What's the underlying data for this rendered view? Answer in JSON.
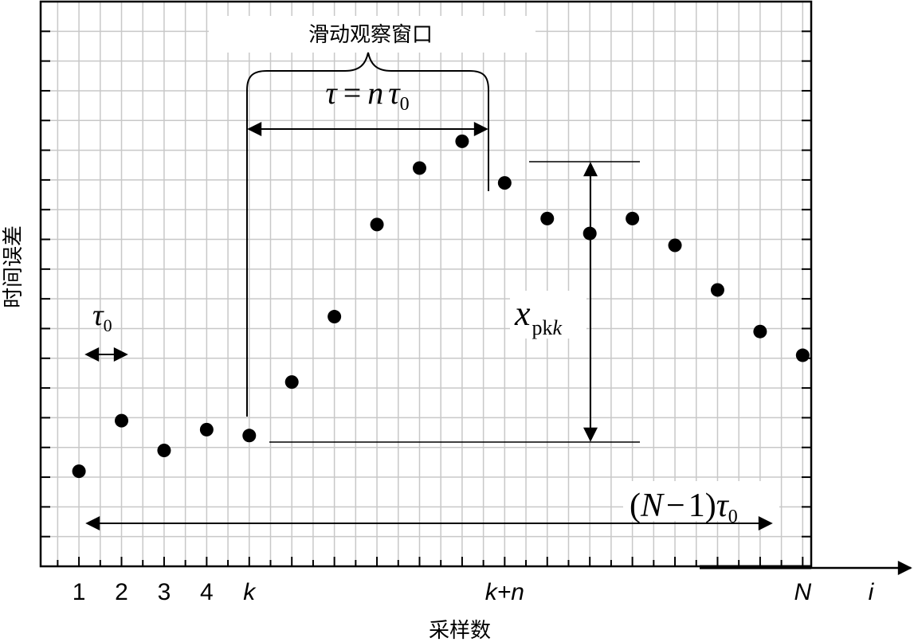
{
  "chart_data": {
    "type": "scatter",
    "title": "",
    "xlabel": "采样数",
    "ylabel": "时间误差",
    "x_axis_end_label": "i",
    "x_tick_labels": [
      "1",
      "2",
      "3",
      "4",
      "k",
      "k+n",
      "N"
    ],
    "x_tick_label_positions": [
      1,
      2,
      3,
      4,
      5,
      11,
      18
    ],
    "grid": true,
    "legend": "none",
    "xlim": [
      0.1,
      18.2
    ],
    "ylim": [
      0,
      19
    ],
    "series": [
      {
        "x": [
          1,
          2,
          3,
          4,
          5,
          6,
          7,
          8,
          9,
          10,
          11,
          12,
          13,
          14,
          15,
          16,
          17,
          18
        ],
        "y": [
          3.2,
          4.9,
          3.9,
          4.6,
          4.4,
          6.2,
          8.4,
          11.5,
          13.4,
          14.3,
          12.9,
          11.7,
          11.2,
          11.7,
          10.8,
          9.3,
          7.9,
          7.1
        ]
      }
    ],
    "annotations": {
      "window_label": "滑动观察窗口",
      "tau_eq": {
        "lhs": "τ",
        "eq": "=",
        "n": "n",
        "tau": "τ",
        "sub": "0"
      },
      "tau0": {
        "sym": "τ",
        "sub": "0"
      },
      "xpk": {
        "sym": "x",
        "sub_a": "pk",
        "sub_b": "k"
      },
      "span": {
        "paren_open": "(",
        "N": "N",
        "minus": "−",
        "one": "1",
        "paren_close": ")",
        "tau": "τ",
        "sub": "0"
      }
    }
  }
}
